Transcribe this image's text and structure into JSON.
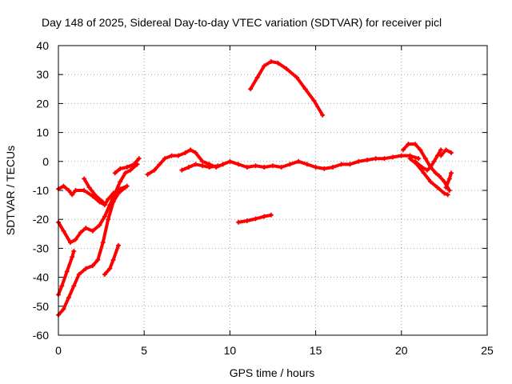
{
  "chart_data": {
    "type": "scatter",
    "title": "Day 148 of 2025, Sidereal Day-to-day VTEC variation (SDTVAR) for receiver picl",
    "xlabel": "GPS time / hours",
    "ylabel": "SDTVAR / TECUs",
    "xlim": [
      0,
      25
    ],
    "ylim": [
      -60,
      40
    ],
    "xticks": [
      0,
      5,
      10,
      15,
      20,
      25
    ],
    "yticks": [
      -60,
      -50,
      -40,
      -30,
      -20,
      -10,
      0,
      10,
      20,
      30,
      40
    ],
    "grid": true,
    "marker_color": "#ff0000",
    "series": [
      {
        "name": "s1",
        "points": [
          [
            11.2,
            25
          ],
          [
            11.6,
            29
          ],
          [
            12.0,
            33
          ],
          [
            12.4,
            34.5
          ],
          [
            12.8,
            34
          ],
          [
            13.3,
            32
          ],
          [
            13.9,
            29
          ],
          [
            14.4,
            25
          ],
          [
            14.9,
            21
          ],
          [
            15.4,
            16
          ]
        ]
      },
      {
        "name": "s2",
        "points": [
          [
            10.5,
            -21
          ],
          [
            11.0,
            -20.5
          ],
          [
            11.5,
            -19.8
          ],
          [
            12.0,
            -19
          ],
          [
            12.4,
            -18.5
          ]
        ]
      },
      {
        "name": "s3",
        "points": [
          [
            0.0,
            -9.5
          ],
          [
            0.3,
            -8.5
          ],
          [
            0.6,
            -10
          ],
          [
            0.8,
            -11.5
          ],
          [
            1.0,
            -10
          ],
          [
            1.5,
            -10
          ],
          [
            2.0,
            -12
          ],
          [
            2.4,
            -14
          ],
          [
            2.7,
            -15
          ],
          [
            2.9,
            -13
          ],
          [
            3.2,
            -11
          ],
          [
            3.6,
            -9.5
          ],
          [
            4.0,
            -8.5
          ]
        ]
      },
      {
        "name": "s4",
        "points": [
          [
            1.5,
            -6
          ],
          [
            1.8,
            -9
          ],
          [
            2.2,
            -12
          ],
          [
            2.6,
            -14
          ]
        ]
      },
      {
        "name": "s5",
        "points": [
          [
            0.0,
            -21
          ],
          [
            0.3,
            -24
          ],
          [
            0.7,
            -28
          ],
          [
            1.0,
            -27
          ],
          [
            1.3,
            -24.5
          ],
          [
            1.6,
            -23
          ],
          [
            2.0,
            -24
          ],
          [
            2.4,
            -22
          ],
          [
            2.7,
            -19
          ],
          [
            3.0,
            -15
          ],
          [
            3.3,
            -11
          ],
          [
            3.6,
            -7
          ],
          [
            3.9,
            -4
          ],
          [
            4.2,
            -3
          ],
          [
            4.6,
            -1
          ]
        ]
      },
      {
        "name": "s6",
        "points": [
          [
            0.0,
            -46
          ],
          [
            0.2,
            -43
          ],
          [
            0.5,
            -38
          ],
          [
            0.8,
            -33
          ],
          [
            0.9,
            -31
          ]
        ]
      },
      {
        "name": "s7",
        "points": [
          [
            0.0,
            -53
          ],
          [
            0.3,
            -51
          ],
          [
            0.6,
            -47
          ],
          [
            0.9,
            -43
          ],
          [
            1.2,
            -39
          ],
          [
            1.6,
            -37
          ],
          [
            2.0,
            -36
          ],
          [
            2.3,
            -34
          ],
          [
            2.6,
            -28
          ],
          [
            2.9,
            -20
          ],
          [
            3.2,
            -14
          ],
          [
            3.5,
            -11
          ],
          [
            3.9,
            -9
          ]
        ]
      },
      {
        "name": "s8",
        "points": [
          [
            2.7,
            -39
          ],
          [
            3.0,
            -37
          ],
          [
            3.2,
            -34
          ],
          [
            3.5,
            -29
          ]
        ]
      },
      {
        "name": "s9",
        "points": [
          [
            3.3,
            -4
          ],
          [
            3.6,
            -2.5
          ],
          [
            4.0,
            -2
          ],
          [
            4.4,
            -1
          ],
          [
            4.7,
            1
          ]
        ]
      },
      {
        "name": "s10",
        "points": [
          [
            5.2,
            -4.5
          ],
          [
            5.6,
            -3
          ],
          [
            5.9,
            -1
          ],
          [
            6.2,
            1
          ],
          [
            6.6,
            2
          ],
          [
            7.0,
            2
          ],
          [
            7.4,
            3
          ],
          [
            7.7,
            4
          ],
          [
            8.0,
            3
          ],
          [
            8.4,
            0
          ],
          [
            8.8,
            -1
          ],
          [
            9.2,
            -2
          ],
          [
            9.6,
            -1
          ],
          [
            10.0,
            0
          ],
          [
            10.5,
            -1
          ],
          [
            11.0,
            -2
          ],
          [
            11.5,
            -1.5
          ],
          [
            12.0,
            -2
          ],
          [
            12.5,
            -1.5
          ],
          [
            13.0,
            -2
          ],
          [
            13.5,
            -1
          ],
          [
            14.0,
            0
          ],
          [
            14.5,
            -1
          ],
          [
            15.0,
            -2
          ],
          [
            15.5,
            -2.5
          ],
          [
            16.0,
            -2
          ],
          [
            16.5,
            -1
          ],
          [
            17.0,
            -1
          ],
          [
            17.5,
            0
          ],
          [
            18.0,
            0.5
          ],
          [
            18.5,
            1
          ],
          [
            19.0,
            1
          ],
          [
            19.5,
            1.5
          ],
          [
            20.0,
            2
          ],
          [
            20.5,
            2
          ],
          [
            21.0,
            1
          ]
        ]
      },
      {
        "name": "s11",
        "points": [
          [
            7.2,
            -3
          ],
          [
            7.6,
            -2
          ],
          [
            8.0,
            -1
          ],
          [
            8.4,
            -1.5
          ],
          [
            8.8,
            -2
          ],
          [
            9.3,
            -1.5
          ]
        ]
      },
      {
        "name": "s12",
        "points": [
          [
            20.1,
            4
          ],
          [
            20.4,
            6
          ],
          [
            20.8,
            6
          ],
          [
            21.1,
            4
          ],
          [
            21.4,
            1
          ],
          [
            21.7,
            -2
          ],
          [
            22.0,
            -4
          ],
          [
            22.2,
            -5
          ],
          [
            22.5,
            -7
          ],
          [
            22.8,
            -10
          ]
        ]
      },
      {
        "name": "s13",
        "points": [
          [
            20.8,
            0
          ],
          [
            21.2,
            -2
          ],
          [
            21.5,
            -3
          ],
          [
            21.7,
            -2
          ],
          [
            21.9,
            0
          ],
          [
            22.1,
            2
          ],
          [
            22.3,
            4
          ]
        ]
      },
      {
        "name": "s14",
        "points": [
          [
            20.5,
            1
          ],
          [
            20.9,
            -1
          ],
          [
            21.3,
            -4
          ],
          [
            21.7,
            -7
          ],
          [
            22.1,
            -9
          ],
          [
            22.5,
            -11
          ],
          [
            22.7,
            -11.5
          ]
        ]
      },
      {
        "name": "s15",
        "points": [
          [
            22.6,
            -9
          ],
          [
            22.8,
            -6
          ],
          [
            22.9,
            -4
          ]
        ]
      },
      {
        "name": "s16",
        "points": [
          [
            22.3,
            2
          ],
          [
            22.6,
            4
          ],
          [
            22.9,
            3
          ]
        ]
      }
    ]
  }
}
